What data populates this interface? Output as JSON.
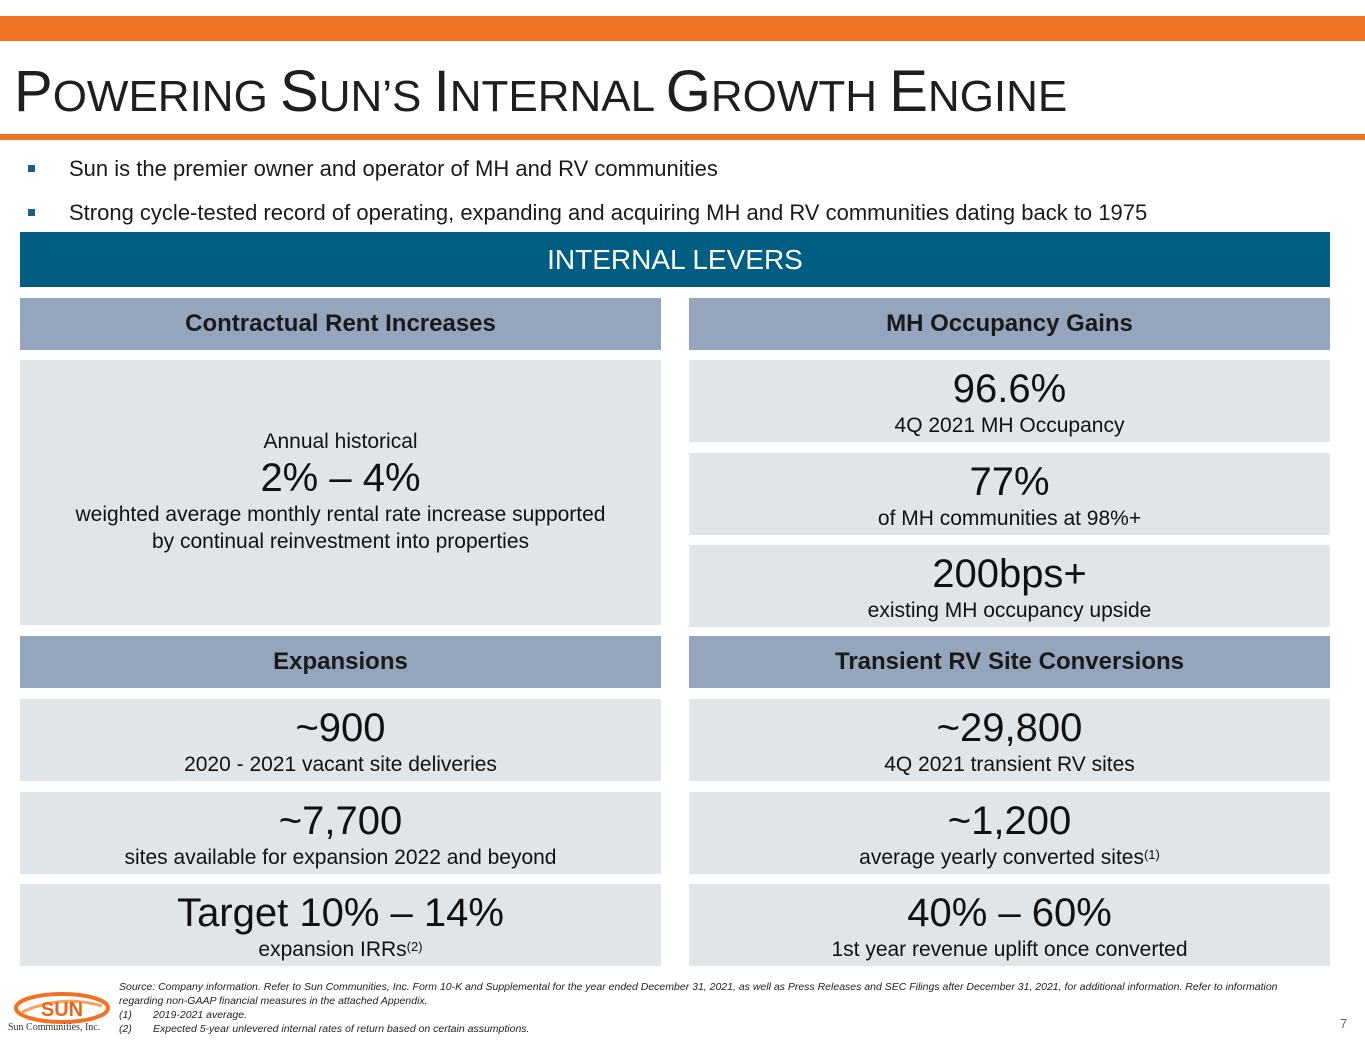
{
  "title": {
    "parts": [
      {
        "big": "P",
        "small": "OWERING "
      },
      {
        "big": "S",
        "small": "UN’S "
      },
      {
        "big": "I",
        "small": "NTERNAL "
      },
      {
        "big": "G",
        "small": "ROWTH "
      },
      {
        "big": "E",
        "small": "NGINE"
      }
    ]
  },
  "bullets": [
    "Sun is the premier owner and operator of MH and RV communities",
    "Strong cycle-tested record of operating, expanding and acquiring MH and RV communities dating back to 1975"
  ],
  "banner": "INTERNAL LEVERS",
  "rent": {
    "header": "Contractual Rent Increases",
    "intro": "Annual historical",
    "big": "2% – 4%",
    "desc1": "weighted average monthly rental rate increase supported",
    "desc2": "by continual reinvestment into properties"
  },
  "occupancy": {
    "header": "MH Occupancy Gains",
    "items": [
      {
        "big": "96.6%",
        "sub": "4Q 2021 MH Occupancy"
      },
      {
        "big": "77%",
        "sub": "of MH communities at 98%+"
      },
      {
        "big": "200bps+",
        "sub": "existing MH occupancy upside"
      }
    ]
  },
  "expansions": {
    "header": "Expansions",
    "items": [
      {
        "big": "~900",
        "sub": "2020 - 2021 vacant site deliveries"
      },
      {
        "big": "~7,700",
        "sub": "sites available for expansion 2022 and beyond"
      },
      {
        "big": "Target 10% – 14%",
        "sub": "expansion IRRs",
        "sup": "(2)"
      }
    ]
  },
  "transient": {
    "header": "Transient RV Site Conversions",
    "items": [
      {
        "big": "~29,800",
        "sub": "4Q 2021 transient RV sites"
      },
      {
        "big": "~1,200",
        "sub": "average yearly converted sites",
        "sup": "(1)"
      },
      {
        "big": "40% – 60%",
        "sub": "1st year revenue uplift once converted"
      }
    ]
  },
  "footnotes": {
    "source": "Source: Company information. Refer to Sun Communities, Inc. Form 10-K and Supplemental for the year ended December 31, 2021, as well as Press Releases and SEC Filings after December 31, 2021, for additional information. Refer to information regarding non-GAAP financial measures in the attached Appendix.",
    "notes": [
      {
        "num": "(1)",
        "text": "2019-2021 average."
      },
      {
        "num": "(2)",
        "text": "Expected 5-year unlevered internal rates of return based on certain assumptions."
      }
    ]
  },
  "logo": {
    "word": "SUN",
    "company": "Sun Communities, Inc."
  },
  "page_number": "7",
  "colors": {
    "accent_orange": "#f07223",
    "banner_blue": "#005e83",
    "header_gray": "#95a5bd",
    "box_gray": "#e0e5ea"
  }
}
